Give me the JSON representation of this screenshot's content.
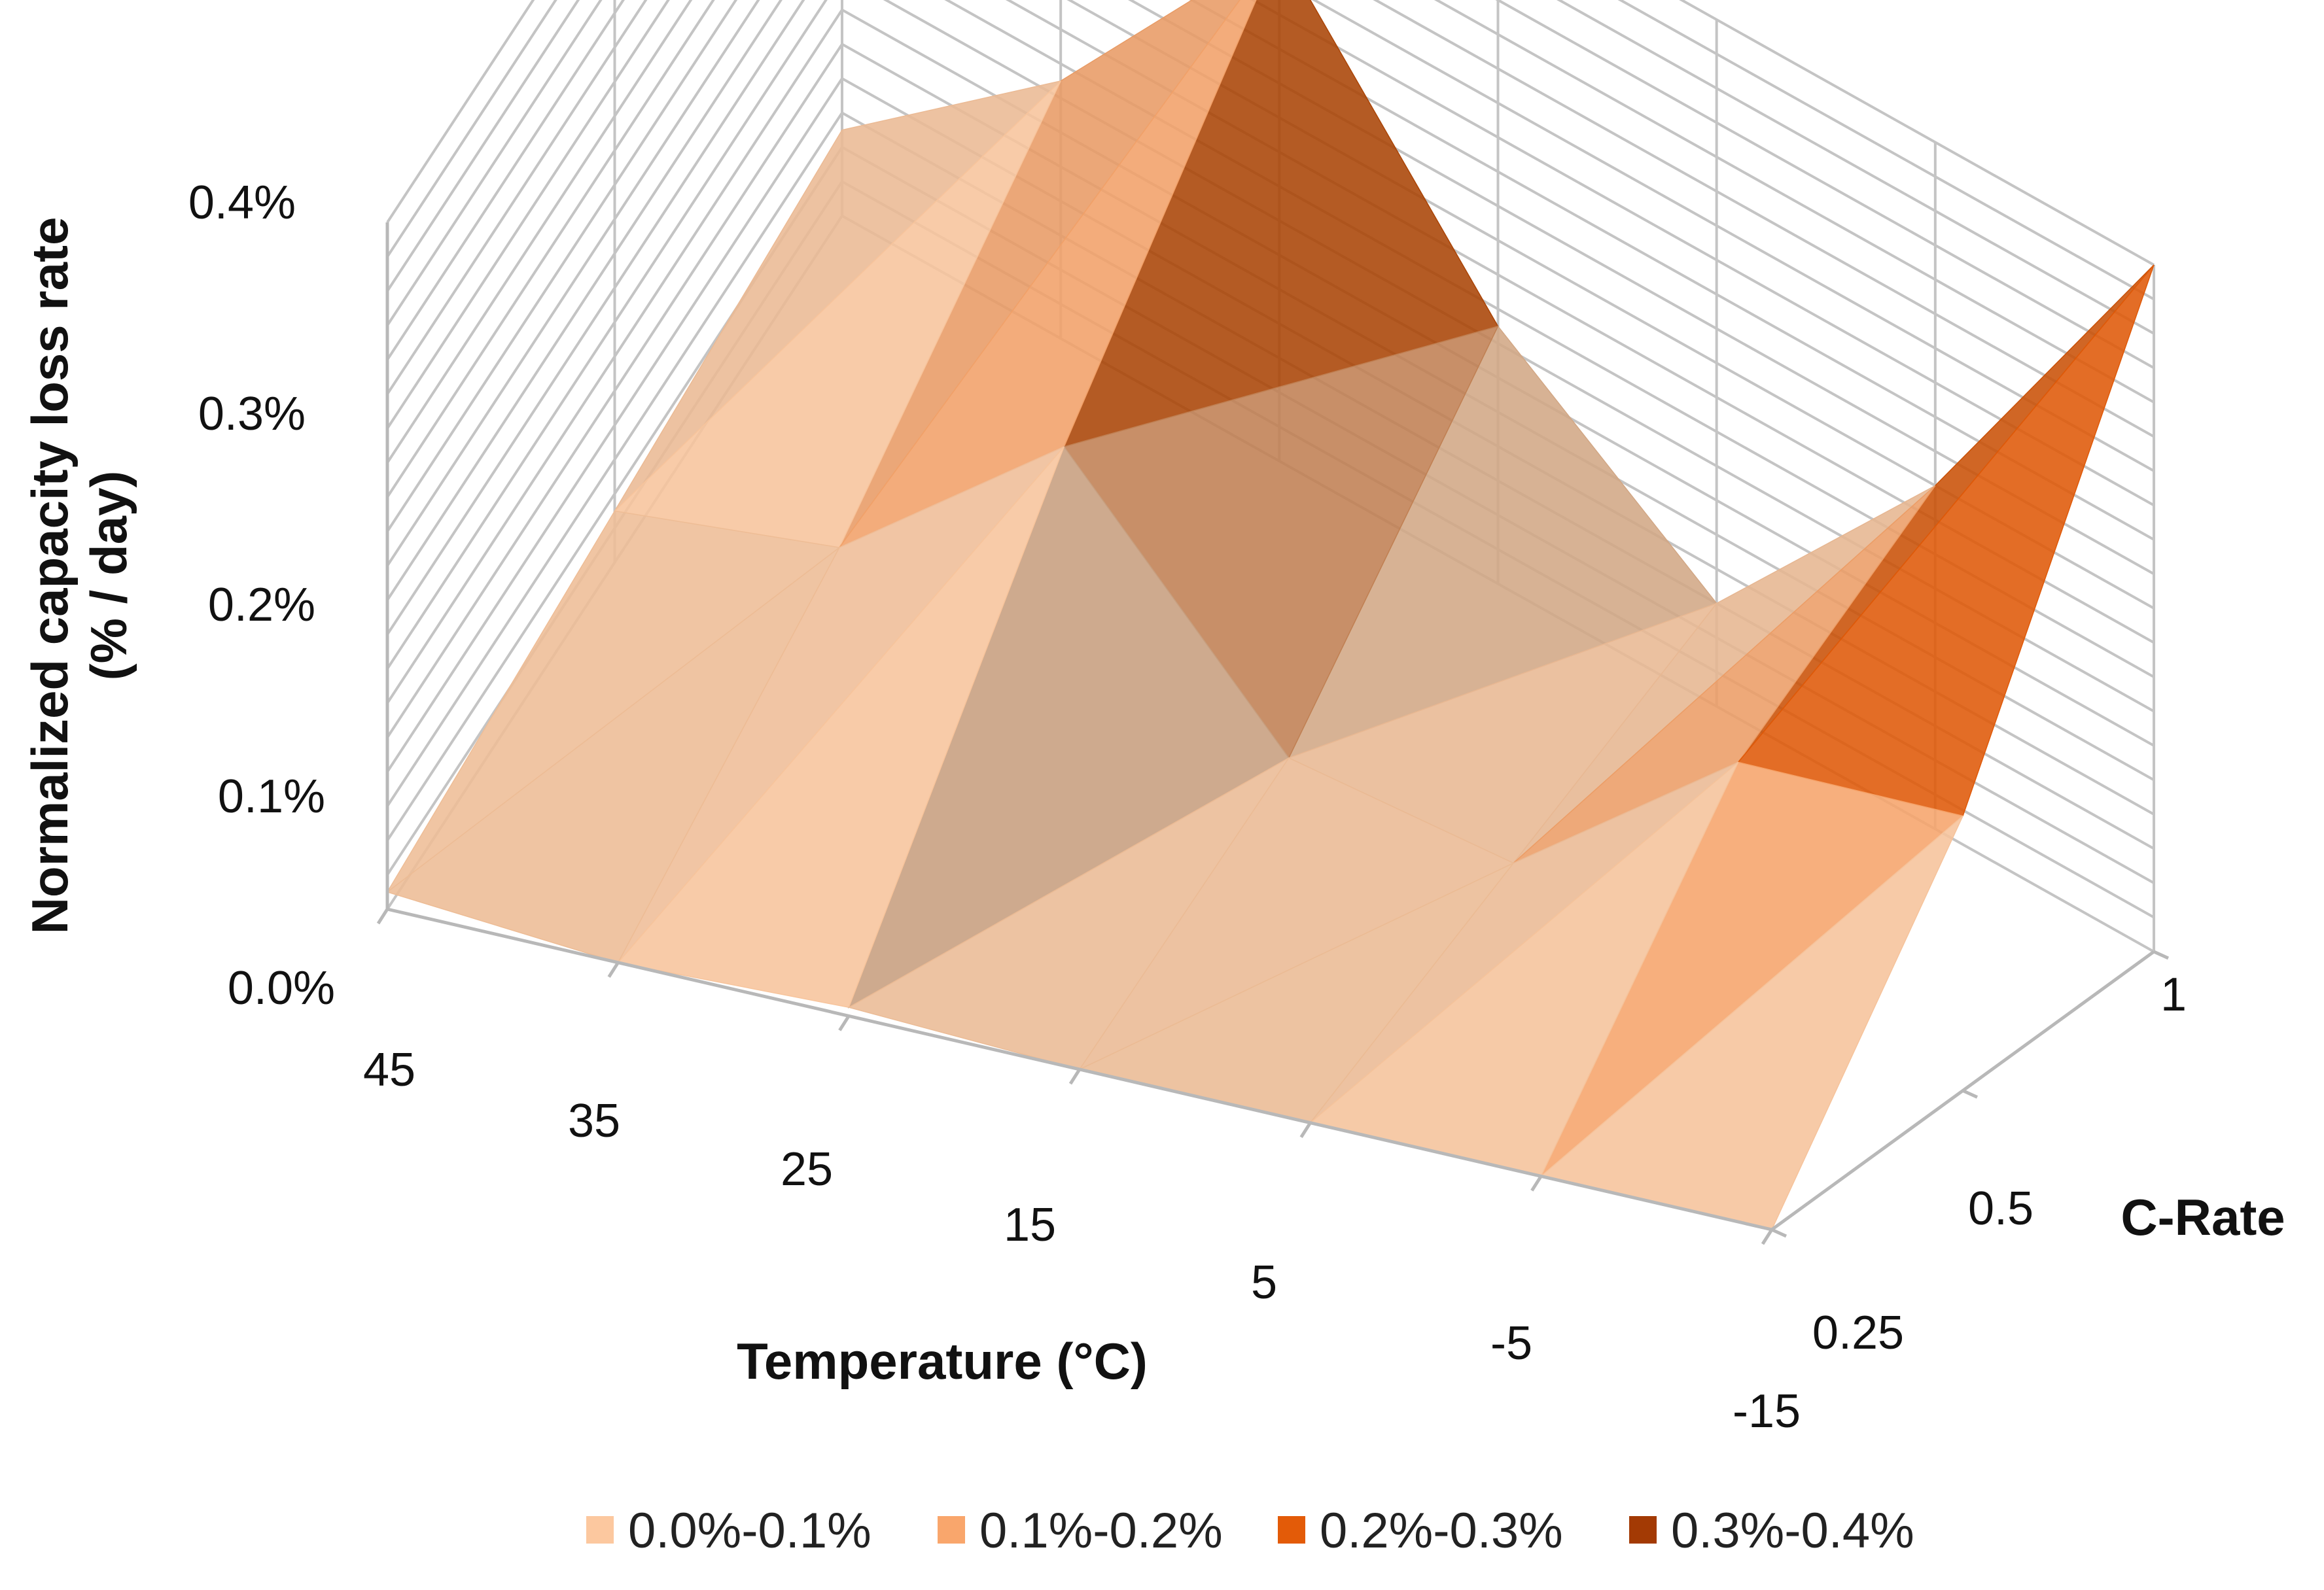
{
  "chart_data": {
    "type": "surface",
    "title": "",
    "zlabel_line1": "Normalized capacity loss rate",
    "zlabel_line2": "(% / day)",
    "xlabel": "Temperature (°C)",
    "ylabel": "C-Rate",
    "temperatures": [
      "45",
      "35",
      "25",
      "15",
      "5",
      "-5",
      "-15"
    ],
    "c_rates": [
      "0.25",
      "0.5",
      "1"
    ],
    "z_ticks": [
      "0.0%",
      "0.1%",
      "0.2%",
      "0.3%",
      "0.4%"
    ],
    "zlim": [
      0,
      0.4
    ],
    "values": [
      [
        0.01,
        0.0,
        0.005,
        0.0,
        0.0,
        0.0,
        0.0
      ],
      [
        0.03,
        0.06,
        0.17,
        0.04,
        0.03,
        0.14,
        0.16
      ],
      [
        0.05,
        0.15,
        0.3,
        0.15,
        0.06,
        0.2,
        0.4
      ]
    ],
    "legend": [
      {
        "label": "0.0%-0.1%",
        "color": "#fcc89f"
      },
      {
        "label": "0.1%-0.2%",
        "color": "#f9a66c"
      },
      {
        "label": "0.2%-0.3%",
        "color": "#e35b08"
      },
      {
        "label": "0.3%-0.4%",
        "color": "#a33a04"
      }
    ]
  }
}
